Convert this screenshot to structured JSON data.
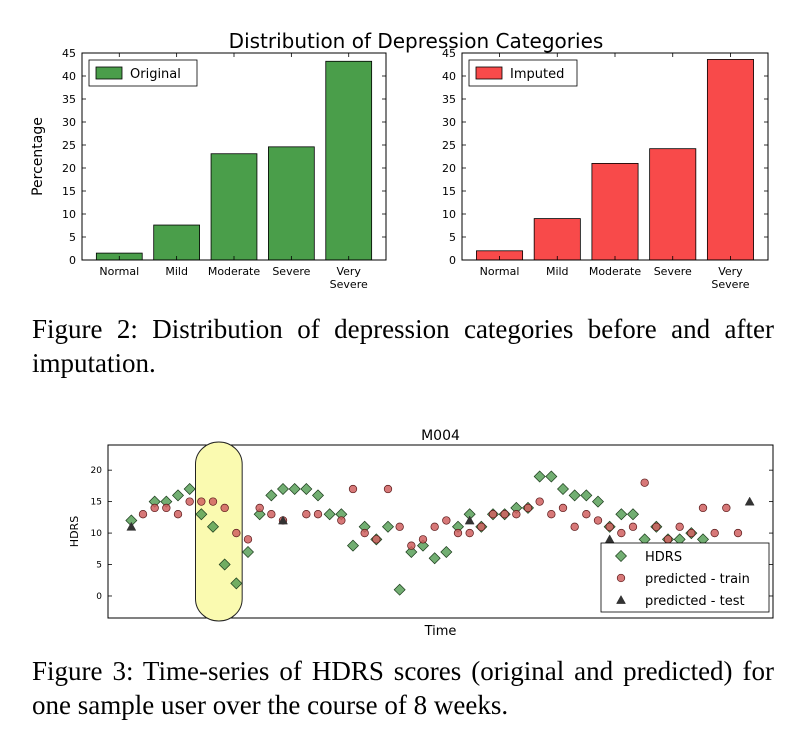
{
  "figure2": {
    "suptitle": "Distribution of Depression Categories",
    "caption": "Figure 2: Distribution of depression categories before and after imputation."
  },
  "figure3": {
    "caption": "Figure 3: Time-series of HDRS scores (original and predicted) for one sample user over the course of 8 weeks."
  },
  "chart_data": [
    {
      "type": "bar",
      "title": "",
      "ylabel": "Percentage",
      "xlabel": "",
      "categories": [
        "Normal",
        "Mild",
        "Moderate",
        "Severe",
        "Very Severe"
      ],
      "series": [
        {
          "name": "Original",
          "values": [
            1.5,
            7.6,
            23.1,
            24.6,
            43.2
          ],
          "color": "#4a9e4a"
        }
      ],
      "ylim": [
        0,
        45
      ],
      "yticks": [
        0,
        5,
        10,
        15,
        20,
        25,
        30,
        35,
        40,
        45
      ],
      "legend": "top-left"
    },
    {
      "type": "bar",
      "title": "",
      "ylabel": "",
      "xlabel": "",
      "categories": [
        "Normal",
        "Mild",
        "Moderate",
        "Severe",
        "Very Severe"
      ],
      "series": [
        {
          "name": "Imputed",
          "values": [
            2.0,
            9.0,
            21.0,
            24.2,
            43.6
          ],
          "color": "#f84a4a"
        }
      ],
      "ylim": [
        0,
        45
      ],
      "yticks": [
        0,
        5,
        10,
        15,
        20,
        25,
        30,
        35,
        40,
        45
      ],
      "legend": "top-left"
    },
    {
      "type": "scatter",
      "title": "M004",
      "xlabel": "Time",
      "ylabel": "HDRS",
      "ylim": [
        -3.5,
        24
      ],
      "yticks": [
        0,
        5,
        10,
        15,
        20
      ],
      "xlim": [
        -1,
        56
      ],
      "legend": "lower-right",
      "highlight": {
        "x_range": [
          6.5,
          10.5
        ],
        "color": "#fafab0"
      },
      "series": [
        {
          "name": "HDRS",
          "marker": "diamond",
          "color": "#4f9a4f",
          "x": [
            1,
            3,
            4,
            5,
            6,
            7,
            8,
            9,
            10,
            11,
            12,
            13,
            14,
            15,
            16,
            17,
            18,
            19,
            20,
            21,
            22,
            23,
            24,
            25,
            26,
            27,
            28,
            29,
            30,
            31,
            32,
            33,
            34,
            35,
            36,
            37,
            38,
            39,
            40,
            41,
            42,
            43,
            44,
            45,
            46,
            47,
            48,
            49,
            50
          ],
          "y": [
            12,
            15,
            15,
            16,
            17,
            13,
            11,
            5,
            2,
            7,
            13,
            16,
            17,
            17,
            17,
            16,
            13,
            13,
            8,
            11,
            9,
            11,
            1,
            7,
            8,
            6,
            7,
            11,
            13,
            11,
            13,
            13,
            14,
            14,
            19,
            19,
            17,
            16,
            16,
            15,
            11,
            13,
            13,
            9,
            11,
            9,
            9,
            10,
            9
          ]
        },
        {
          "name": "predicted - train",
          "marker": "circle",
          "color": "#d06060",
          "x": [
            2,
            3,
            4,
            5,
            6,
            7,
            8,
            9,
            10,
            11,
            12,
            13,
            14,
            16,
            17,
            19,
            20,
            21,
            22,
            23,
            24,
            25,
            26,
            27,
            28,
            29,
            30,
            31,
            32,
            33,
            34,
            35,
            36,
            37,
            38,
            39,
            40,
            41,
            42,
            43,
            44,
            45,
            46,
            47,
            48,
            49,
            50,
            51,
            52,
            53
          ],
          "y": [
            13,
            14,
            14,
            13,
            15,
            15,
            15,
            14,
            10,
            9,
            14,
            13,
            12,
            13,
            13,
            12,
            17,
            10,
            9,
            17,
            11,
            8,
            9,
            11,
            12,
            10,
            10,
            11,
            13,
            13,
            13,
            14,
            15,
            13,
            14,
            11,
            13,
            12,
            11,
            10,
            11,
            18,
            11,
            9,
            11,
            10,
            14,
            10,
            14,
            10
          ]
        },
        {
          "name": "predicted - test",
          "marker": "triangle",
          "color": "#333333",
          "x": [
            1,
            14,
            30,
            42,
            54
          ],
          "y": [
            11,
            12,
            12,
            9,
            15
          ]
        }
      ]
    }
  ]
}
